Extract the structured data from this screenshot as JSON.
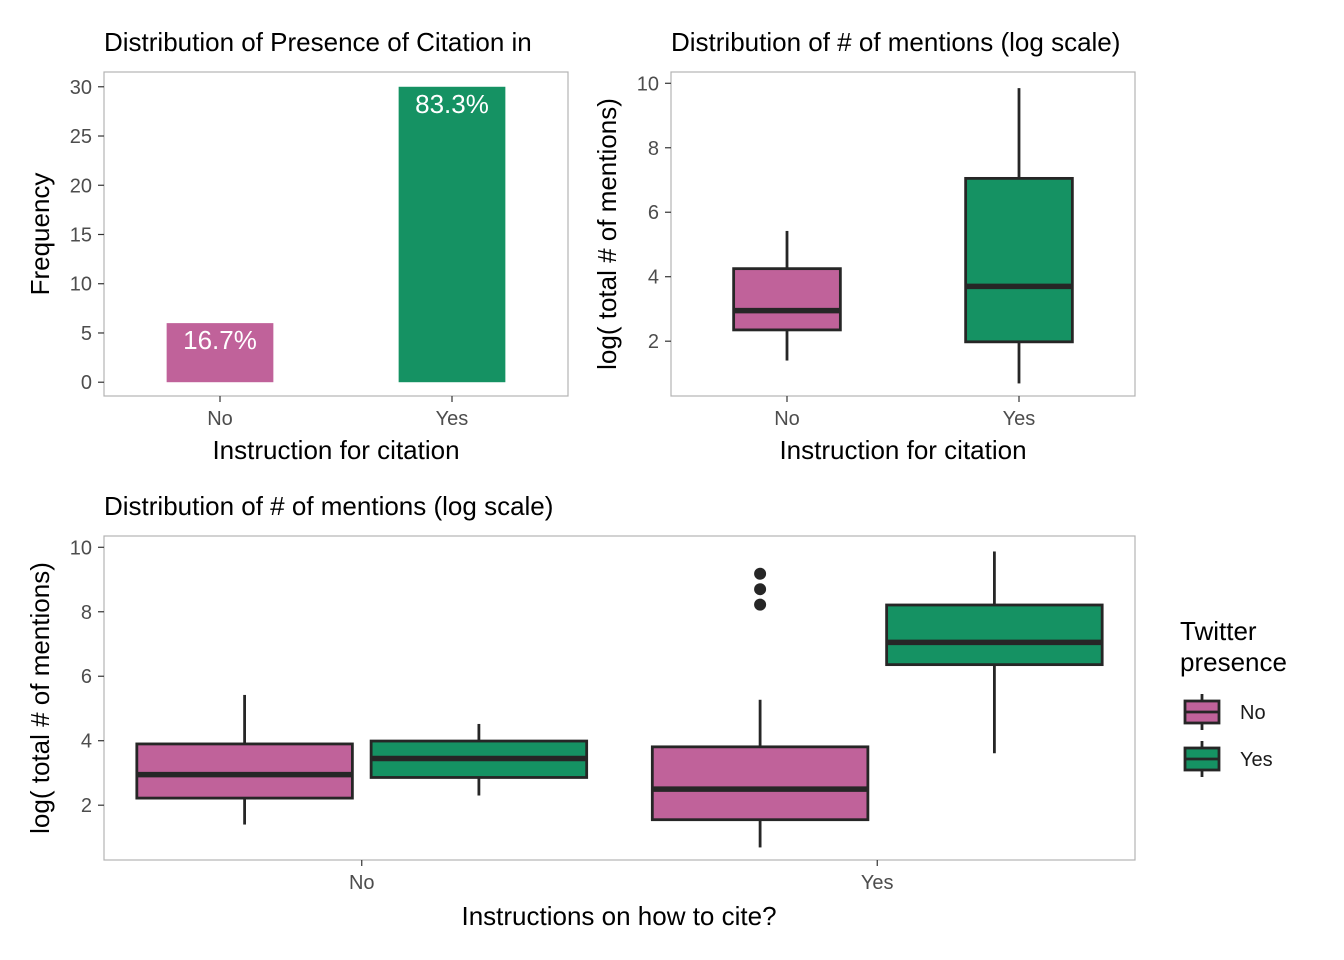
{
  "colors": {
    "No": "#c0629a",
    "Yes": "#159263",
    "outline": "#262626"
  },
  "chart_data": [
    {
      "id": "panel-a",
      "type": "bar",
      "title": "Distribution of Presence of Citation in",
      "xlabel": "Instruction for citation",
      "ylabel": "Frequency",
      "categories": [
        "No",
        "Yes"
      ],
      "values": [
        6,
        30
      ],
      "data_labels": [
        "16.7%",
        "83.3%"
      ],
      "ylim": [
        -1.4,
        31.5
      ],
      "yticks": [
        0,
        5,
        10,
        15,
        20,
        25,
        30
      ],
      "grid": false
    },
    {
      "id": "panel-b",
      "type": "boxplot",
      "title": "Distribution of # of mentions (log scale)",
      "xlabel": "Instruction for citation",
      "ylabel": "log( total # of mentions)",
      "categories": [
        "No",
        "Yes"
      ],
      "boxes": [
        {
          "category": "No",
          "group": "No",
          "whisker_low": 1.4,
          "q1": 2.35,
          "median": 2.95,
          "q3": 4.25,
          "whisker_high": 5.42,
          "outliers": []
        },
        {
          "category": "Yes",
          "group": "Yes",
          "whisker_low": 0.69,
          "q1": 1.98,
          "median": 3.7,
          "q3": 7.05,
          "whisker_high": 9.85,
          "outliers": []
        }
      ],
      "ylim": [
        0.3,
        10.35
      ],
      "yticks": [
        2,
        4,
        6,
        8,
        10
      ],
      "grid": false
    },
    {
      "id": "panel-c",
      "type": "boxplot",
      "title": "Distribution of # of mentions (log scale)",
      "xlabel": "Instructions on how to cite?",
      "ylabel": "log( total # of mentions)",
      "categories": [
        "No",
        "Yes"
      ],
      "legend": {
        "title_lines": [
          "Twitter",
          "presence"
        ],
        "entries": [
          "No",
          "Yes"
        ],
        "position": "right"
      },
      "boxes": [
        {
          "category": "No",
          "group": "No",
          "whisker_low": 1.4,
          "q1": 2.22,
          "median": 2.95,
          "q3": 3.9,
          "whisker_high": 5.42,
          "outliers": []
        },
        {
          "category": "No",
          "group": "Yes",
          "whisker_low": 2.3,
          "q1": 2.86,
          "median": 3.45,
          "q3": 3.99,
          "whisker_high": 4.52,
          "outliers": []
        },
        {
          "category": "Yes",
          "group": "No",
          "whisker_low": 0.69,
          "q1": 1.55,
          "median": 2.5,
          "q3": 3.81,
          "whisker_high": 5.27,
          "outliers": [
            8.22,
            8.7,
            9.18
          ]
        },
        {
          "category": "Yes",
          "group": "Yes",
          "whisker_low": 3.61,
          "q1": 6.36,
          "median": 7.05,
          "q3": 8.21,
          "whisker_high": 9.87,
          "outliers": []
        }
      ],
      "ylim": [
        0.3,
        10.35
      ],
      "yticks": [
        2,
        4,
        6,
        8,
        10
      ],
      "grid": false
    }
  ]
}
